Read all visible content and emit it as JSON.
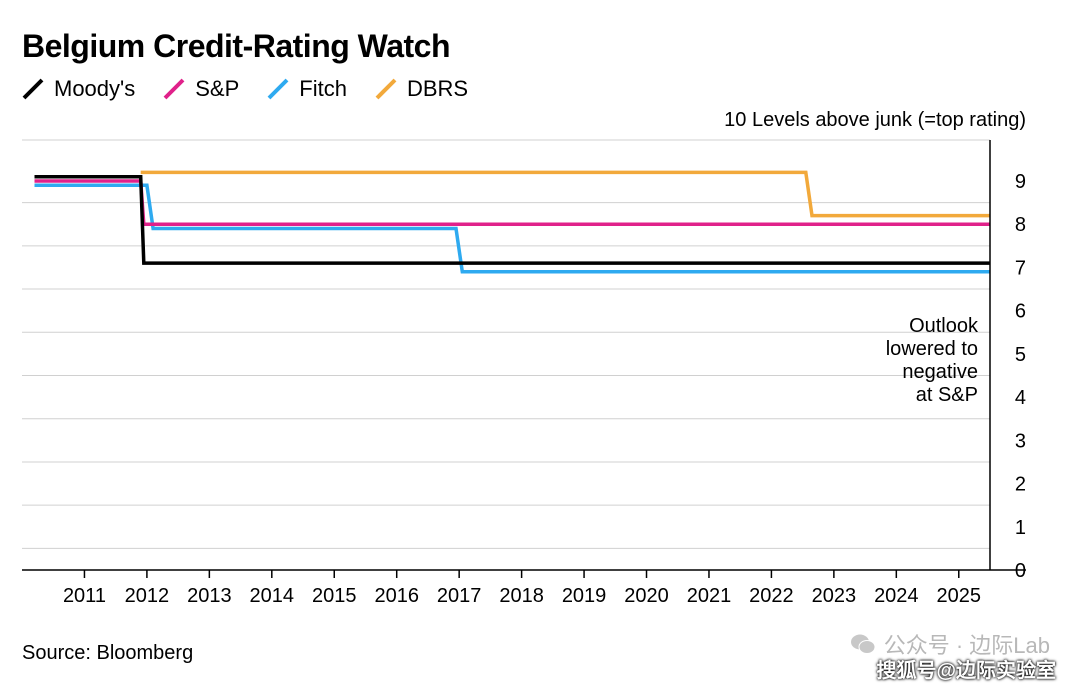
{
  "chart_data": {
    "type": "line",
    "title": "Belgium Credit-Rating Watch",
    "ylabel": "10 Levels above junk (=top rating)",
    "ylim": [
      0,
      10
    ],
    "yticks": [
      0,
      1,
      2,
      3,
      4,
      5,
      6,
      7,
      8,
      9
    ],
    "xlim": [
      2010,
      2025.5
    ],
    "xticks": [
      2011,
      2012,
      2013,
      2014,
      2015,
      2016,
      2017,
      2018,
      2019,
      2020,
      2021,
      2022,
      2023,
      2024,
      2025
    ],
    "grid": true,
    "legend_position": "top-left",
    "series": [
      {
        "name": "Moody's",
        "color": "#000000",
        "step": true,
        "points": [
          [
            2010.2,
            9.1
          ],
          [
            2011.9,
            9.1
          ],
          [
            2011.95,
            7.1
          ],
          [
            2025.5,
            7.1
          ]
        ]
      },
      {
        "name": "S&P",
        "color": "#e0218a",
        "step": true,
        "points": [
          [
            2010.2,
            9.0
          ],
          [
            2011.9,
            9.0
          ],
          [
            2011.95,
            8.0
          ],
          [
            2025.5,
            8.0
          ]
        ]
      },
      {
        "name": "Fitch",
        "color": "#2eaaf0",
        "step": true,
        "points": [
          [
            2010.2,
            8.9
          ],
          [
            2012.0,
            8.9
          ],
          [
            2012.1,
            7.9
          ],
          [
            2016.95,
            7.9
          ],
          [
            2017.05,
            6.9
          ],
          [
            2025.5,
            6.9
          ]
        ]
      },
      {
        "name": "DBRS",
        "color": "#f2a93b",
        "step": true,
        "points": [
          [
            2011.9,
            9.2
          ],
          [
            2022.55,
            9.2
          ],
          [
            2022.65,
            8.2
          ],
          [
            2025.5,
            8.2
          ]
        ]
      }
    ],
    "annotations": [
      {
        "lines": [
          "Outlook",
          "lowered to",
          "negative",
          "at S&P"
        ]
      }
    ]
  },
  "source": "Source: Bloomberg",
  "watermark": {
    "line1": "公众号 · 边际Lab",
    "line2": "搜狐号@边际实验室"
  }
}
